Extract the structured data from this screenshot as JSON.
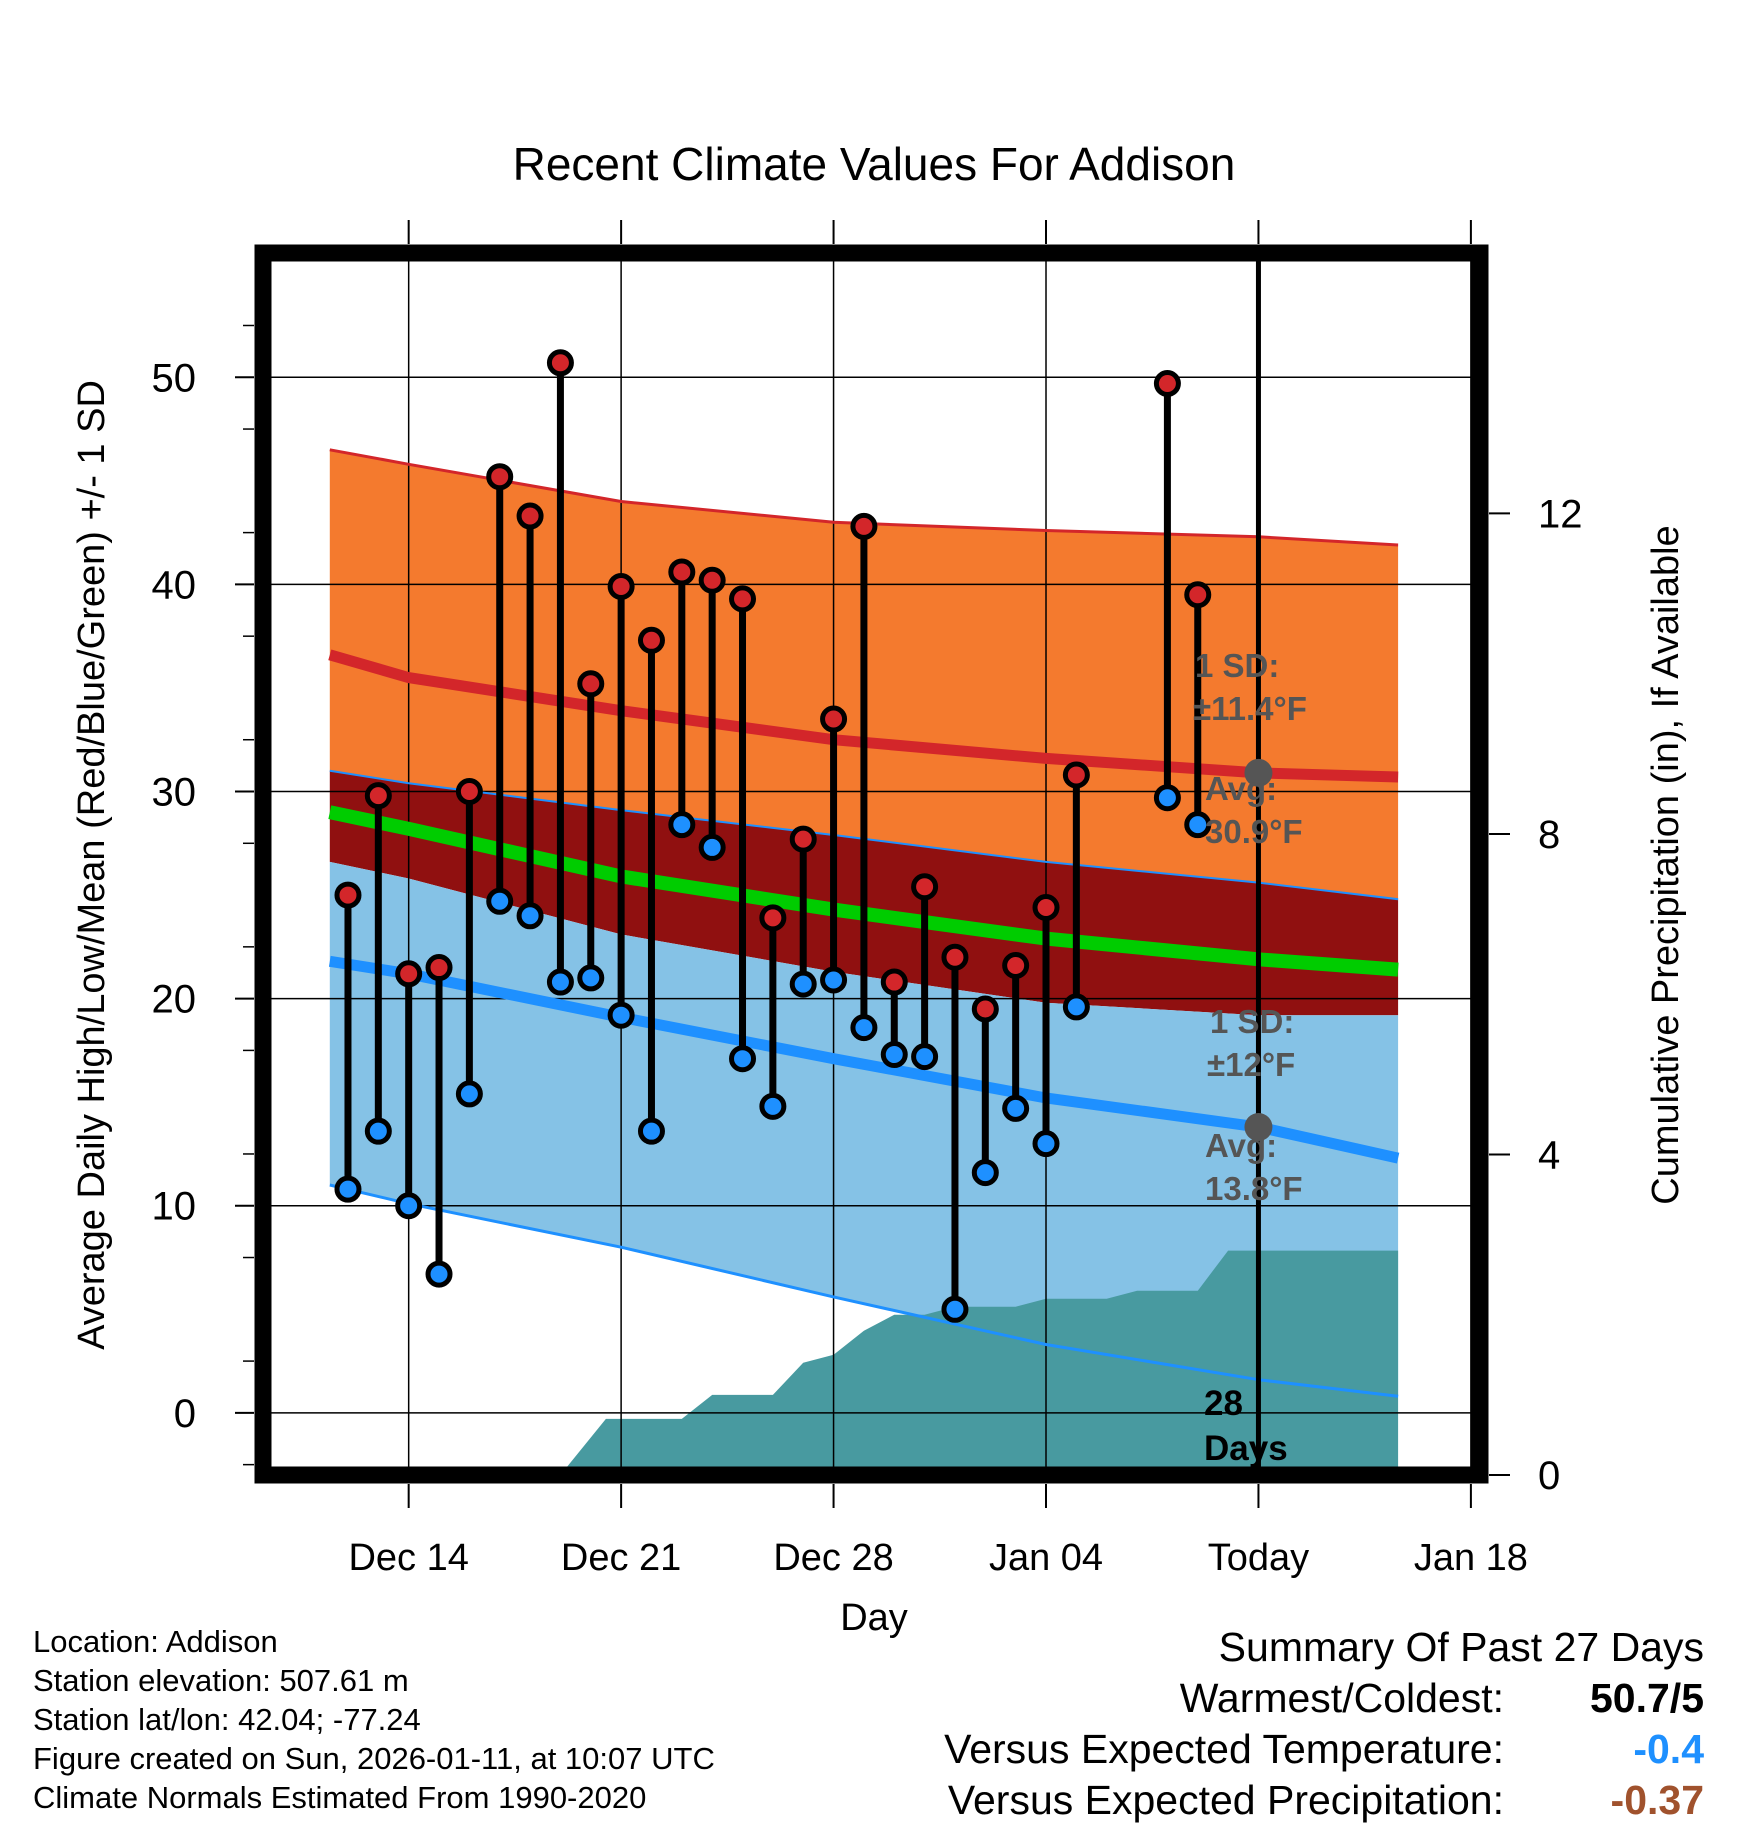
{
  "chart_data": {
    "type": "scatter",
    "title": "Recent Climate Values For Addison",
    "xlabel": "Day",
    "ylabel": "Average Daily High/Low/Mean (Red/Blue/Green) +/- 1 SD",
    "y2label": "Cumulative Precipitation (in), If Available",
    "xlim": [
      -4.8,
      35.3
    ],
    "ylim": [
      -3,
      56
    ],
    "y2lim": [
      0,
      15.25
    ],
    "x_ticks": [
      {
        "day": 0,
        "label": "Dec 14"
      },
      {
        "day": 7,
        "label": "Dec 21"
      },
      {
        "day": 14,
        "label": "Dec 28"
      },
      {
        "day": 21,
        "label": "Jan 04"
      },
      {
        "day": 28,
        "label": "Today"
      },
      {
        "day": 35,
        "label": "Jan 18"
      }
    ],
    "y_ticks": [
      0,
      10,
      20,
      30,
      40,
      50
    ],
    "y2_ticks": [
      0,
      4,
      8,
      12
    ],
    "today_day": 28,
    "normals": {
      "days": [
        -2.6,
        0,
        7,
        14,
        21,
        28,
        32.6
      ],
      "mean": [
        29,
        28.2,
        25.9,
        24.3,
        22.9,
        21.9,
        21.4
      ],
      "high_avg": [
        36.6,
        35.5,
        33.9,
        32.5,
        31.6,
        30.9,
        30.7
      ],
      "high_upper": [
        46.5,
        45.8,
        44.0,
        43.0,
        42.6,
        42.3,
        41.9
      ],
      "high_lower": [
        31.0,
        30.4,
        29.1,
        27.9,
        26.6,
        25.6,
        24.8
      ],
      "low_avg": [
        21.8,
        21.2,
        19.1,
        17.1,
        15.2,
        13.8,
        12.3
      ],
      "low_upper": [
        26.6,
        25.8,
        23.1,
        21.3,
        19.8,
        19.2,
        19.2
      ],
      "low_lower": [
        11.0,
        10.1,
        8.0,
        5.6,
        3.3,
        1.6,
        0.8
      ]
    },
    "observations": {
      "days": [
        -2,
        -1,
        0,
        1,
        2,
        3,
        4,
        5,
        6,
        7,
        8,
        9,
        10,
        11,
        12,
        13,
        14,
        15,
        16,
        17,
        18,
        19,
        20,
        21,
        22,
        25,
        26
      ],
      "high": [
        25.0,
        29.8,
        21.2,
        21.5,
        30.0,
        45.2,
        43.3,
        50.7,
        35.2,
        39.9,
        37.3,
        40.6,
        40.2,
        39.3,
        23.9,
        27.7,
        33.5,
        42.8,
        20.8,
        25.4,
        22.0,
        19.5,
        21.6,
        24.4,
        30.8,
        49.7,
        39.5
      ],
      "low": [
        10.8,
        13.6,
        10.0,
        6.7,
        15.4,
        24.7,
        24.0,
        20.8,
        21.0,
        19.2,
        13.6,
        28.4,
        27.3,
        17.1,
        14.8,
        20.7,
        20.9,
        18.6,
        17.3,
        17.2,
        5.0,
        11.6,
        14.7,
        13.0,
        19.6,
        29.7,
        28.4
      ]
    },
    "precip_cumulative": {
      "days": [
        -0.4,
        0.4,
        2.2,
        3.5,
        5.0,
        6.5,
        8.0,
        9.0,
        10.0,
        11.0,
        12.0,
        13.0,
        14.0,
        15.0,
        16.0,
        17.0,
        18.0,
        19.0,
        20.0,
        21.0,
        22.0,
        23.0,
        24.0,
        25.0,
        26.0,
        27.0,
        32.6
      ],
      "values": [
        0,
        0,
        0,
        0,
        0,
        0.7,
        0.7,
        0.7,
        1.0,
        1.0,
        1.0,
        1.4,
        1.5,
        1.8,
        2.0,
        2.0,
        2.1,
        2.1,
        2.1,
        2.2,
        2.2,
        2.2,
        2.3,
        2.3,
        2.3,
        2.8,
        2.8
      ]
    },
    "annotations": {
      "high_sd_label": "1 SD:",
      "high_sd_value": "±11.4°F",
      "high_avg_label": "Avg:",
      "high_avg_value": "30.9°F",
      "low_sd_label": "1 SD:",
      "low_sd_value": "±12°F",
      "low_avg_label": "Avg:",
      "low_avg_value": "13.8°F",
      "today_high_avg": 30.9,
      "today_low_avg": 13.8,
      "precip_days_number": "28",
      "precip_days_word": "Days"
    }
  },
  "info": {
    "location": "Location: Addison",
    "elevation": "Station elevation: 507.61 m",
    "latlon": "Station lat/lon: 42.04; -77.24",
    "created": "Figure created on Sun, 2026-01-11, at 10:07 UTC",
    "normals": "Climate Normals Estimated From 1990-2020"
  },
  "summary": {
    "title": "Summary Of Past 27 Days",
    "warm_cold_label": "Warmest/Coldest:",
    "warm_cold_value": "50.7/5",
    "temp_label": "Versus Expected Temperature:",
    "temp_value": "-0.4",
    "precip_label": "Versus Expected Precipitation:",
    "precip_value": "-0.37"
  },
  "colors": {
    "high_band": "#f47a2e",
    "high_avg_line": "#d3262a",
    "mean_band": "#901010",
    "mean_line": "#00cc00",
    "low_band": "#85c2e6",
    "low_avg_line": "#1e90ff",
    "low_lower_edge": "#1e90ff",
    "precip_fill": "#489aa0",
    "high_marker": "#d3262a",
    "low_marker": "#1e90ff",
    "annotation_text": "#555555",
    "temp_value": "#1e90ff",
    "precip_value": "#a0522d"
  }
}
